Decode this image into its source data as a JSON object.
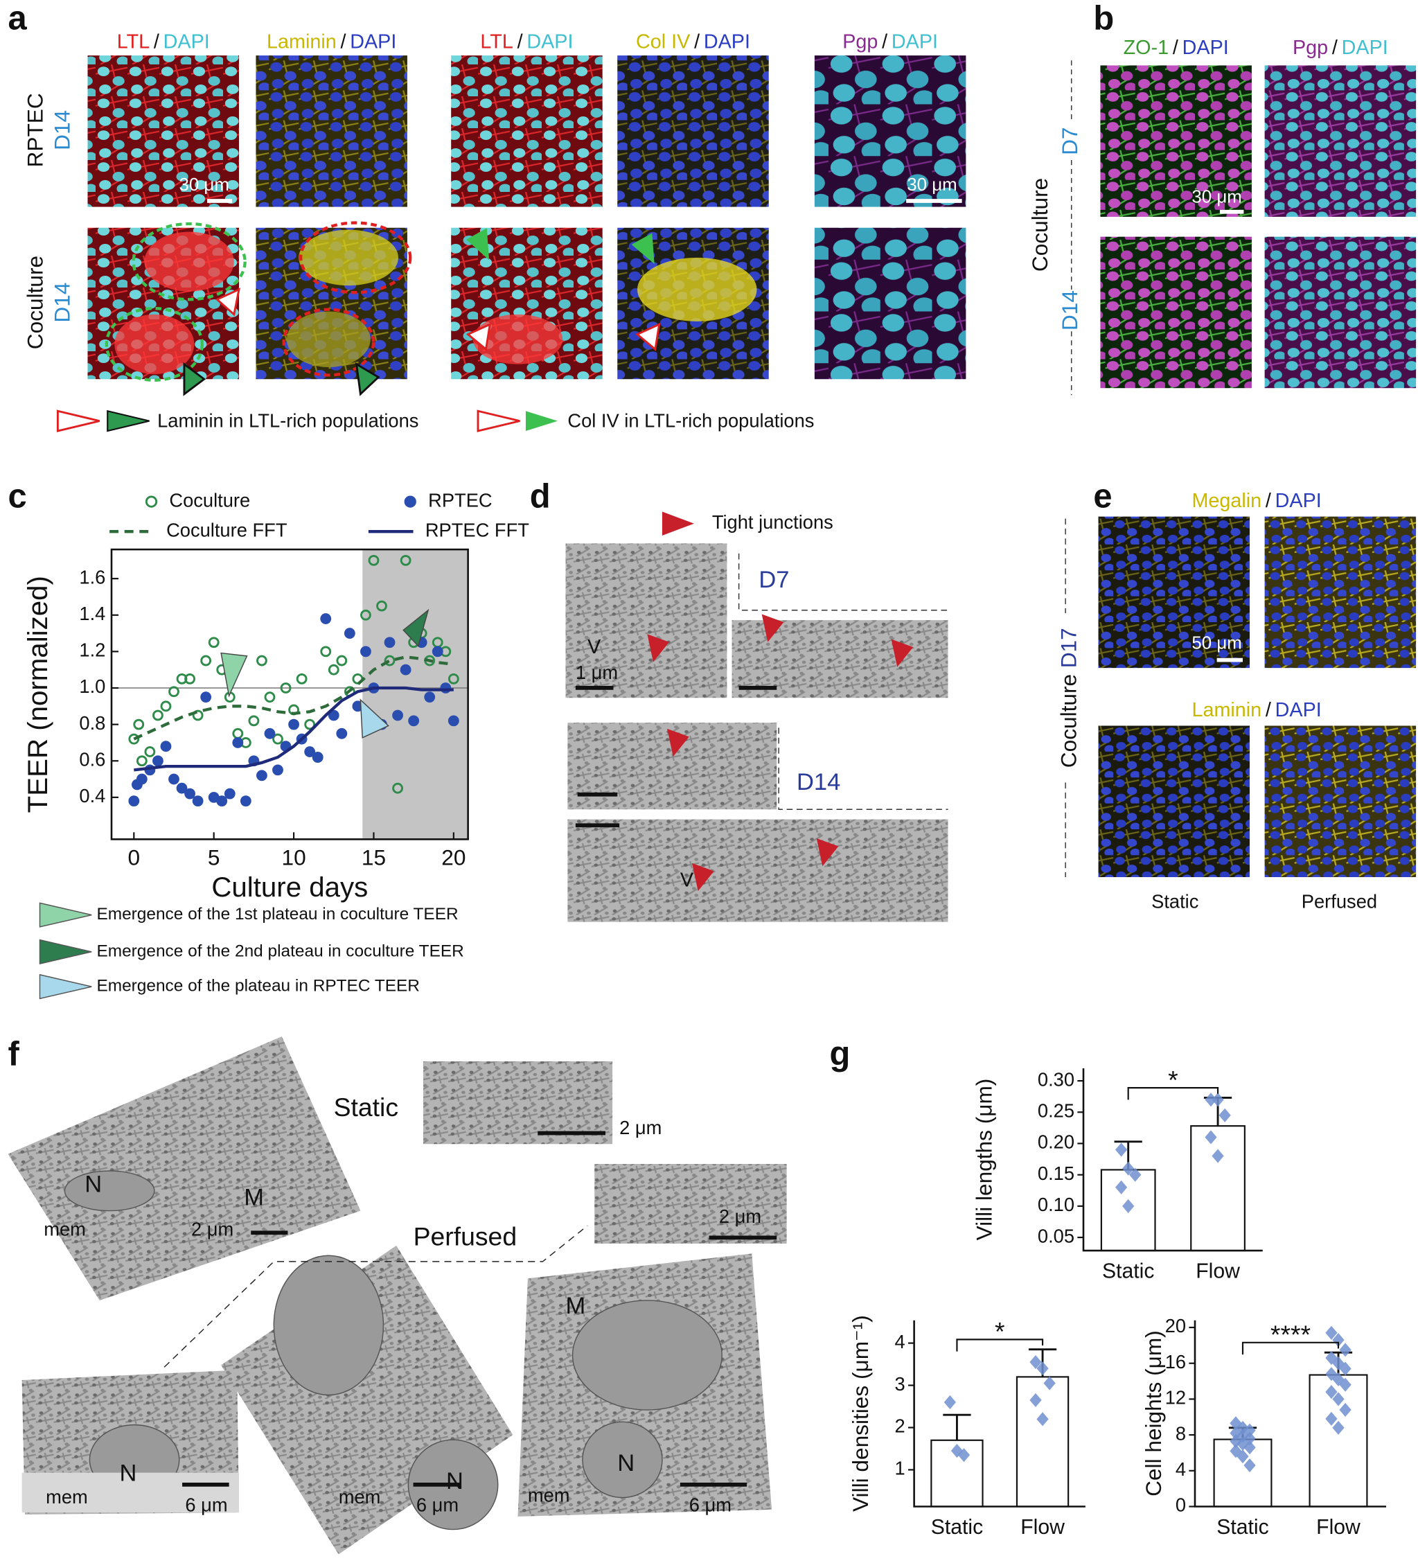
{
  "panel_a": {
    "label": "a",
    "headers": [
      [
        "LTL",
        "/",
        "DAPI"
      ],
      [
        "Laminin",
        "/",
        "DAPI"
      ],
      [
        "LTL",
        "/",
        "DAPI"
      ],
      [
        "Col IV",
        "/",
        "DAPI"
      ],
      [
        "Pgp",
        "/",
        "DAPI"
      ]
    ],
    "row_labels": [
      [
        "RPTEC",
        "D14"
      ],
      [
        "Coculture",
        "D14"
      ]
    ],
    "scale_bar": "30 μm",
    "legend": [
      "Laminin in LTL-rich populations",
      "Col IV in LTL-rich populations"
    ]
  },
  "panel_b": {
    "label": "b",
    "headers": [
      [
        "ZO-1",
        "/",
        "DAPI"
      ],
      [
        "Pgp",
        "/",
        "DAPI"
      ]
    ],
    "group": "Coculture",
    "rows": [
      "D7",
      "D14"
    ],
    "scale_bar": "30 μm"
  },
  "panel_c": {
    "label": "c",
    "notes": [
      "Emergence of the 1st plateau in coculture TEER",
      "Emergence of the 2nd plateau in coculture TEER",
      "Emergence of the plateau in RPTEC TEER"
    ]
  },
  "panel_d": {
    "label": "d",
    "legend": "Tight junctions",
    "days": [
      "D7",
      "D14"
    ],
    "scale_bar": "1 μm",
    "vesicle": "V"
  },
  "panel_e": {
    "label": "e",
    "headers": [
      [
        "Megalin",
        "/",
        "DAPI"
      ],
      [
        "Laminin",
        "/",
        "DAPI"
      ]
    ],
    "group": "Coculture",
    "day": "D17",
    "scale_bar": "50 μm",
    "columns": [
      "Static",
      "Perfused"
    ]
  },
  "panel_f": {
    "label": "f",
    "titles": [
      "Static",
      "Perfused"
    ],
    "nucleus": "N",
    "mito": "M",
    "membrane": "mem",
    "scale_bars": [
      "2 μm",
      "6 μm"
    ]
  },
  "panel_g": {
    "label": "g"
  },
  "chart_data": [
    {
      "type": "scatter",
      "x_label": "Culture days",
      "y_label": "TEER (normalized)",
      "xlim": [
        -1.4,
        20.9
      ],
      "ylim": [
        0.17,
        1.76
      ],
      "xticks": [
        0,
        5,
        10,
        15,
        20
      ],
      "yticks": [
        0.4,
        0.6,
        0.8,
        {
          "value": 1,
          "label": "1.0"
        },
        1.2,
        1.4,
        1.6
      ],
      "grid": false,
      "reference_y": 1,
      "shaded_x": [
        14.3,
        20.9
      ],
      "series": [
        {
          "name": "Coculture",
          "type": "scatter",
          "marker": "open",
          "color": "#2e8b4a",
          "x": [
            0,
            0.3,
            0.5,
            1,
            1.5,
            2,
            2.5,
            3,
            3.5,
            4,
            4.5,
            5,
            5.5,
            6,
            6.5,
            7,
            7.5,
            8,
            8.5,
            9,
            9.5,
            10,
            10.5,
            11,
            11.5,
            12,
            12.5,
            13,
            13.5,
            14,
            14.5,
            15,
            15.5,
            16,
            16.5,
            17,
            17.5,
            18,
            18.5,
            19,
            19.5,
            20
          ],
          "values": [
            0.72,
            0.8,
            0.6,
            0.65,
            0.85,
            0.9,
            0.98,
            1.05,
            1.05,
            0.85,
            1.15,
            1.25,
            1.1,
            0.95,
            0.75,
            0.7,
            0.82,
            1.15,
            0.95,
            0.72,
            1.0,
            0.88,
            1.05,
            0.8,
            0.62,
            1.2,
            1.1,
            1.15,
            0.98,
            1.05,
            1.4,
            1.7,
            1.45,
            1.15,
            0.45,
            1.7,
            1.25,
            1.3,
            1.15,
            1.25,
            1.2,
            1.05
          ]
        },
        {
          "name": "RPTEC",
          "type": "scatter",
          "marker": "filled",
          "color": "#2a4db0",
          "x": [
            0,
            0.2,
            0.5,
            1,
            1.5,
            2,
            2.5,
            3,
            3.5,
            4,
            4.5,
            5,
            5.5,
            6,
            6.5,
            7,
            7.5,
            8,
            8.5,
            9,
            9.5,
            10,
            10.5,
            11,
            11.5,
            12,
            12.5,
            13,
            13.5,
            14,
            14.5,
            15,
            15.5,
            16,
            16.5,
            17,
            17.5,
            18,
            18.5,
            19,
            19.5,
            20
          ],
          "values": [
            0.38,
            0.47,
            0.5,
            0.55,
            0.6,
            0.68,
            0.5,
            0.45,
            0.42,
            0.38,
            0.95,
            0.4,
            0.38,
            0.42,
            0.7,
            0.38,
            0.6,
            0.52,
            0.75,
            0.55,
            0.68,
            0.8,
            0.72,
            0.65,
            0.62,
            1.38,
            0.85,
            0.75,
            1.3,
            0.9,
            1.2,
            1.0,
            0.8,
            1.25,
            0.85,
            1.1,
            0.82,
            1.25,
            0.95,
            1.2,
            1.0,
            0.82
          ]
        },
        {
          "name": "Coculture FFT",
          "type": "line",
          "dash": true,
          "color": "#2e6b3a",
          "x": [
            0,
            1,
            2,
            3,
            4,
            5,
            6,
            7,
            8,
            9,
            10,
            11,
            12,
            13,
            14,
            15,
            16,
            17,
            18,
            19,
            20
          ],
          "values": [
            0.72,
            0.76,
            0.8,
            0.84,
            0.87,
            0.89,
            0.9,
            0.9,
            0.89,
            0.87,
            0.86,
            0.87,
            0.9,
            0.95,
            1.02,
            1.1,
            1.15,
            1.17,
            1.16,
            1.14,
            1.13
          ]
        },
        {
          "name": "RPTEC FFT",
          "type": "line",
          "dash": false,
          "color": "#1f2a7a",
          "x": [
            0,
            1,
            2,
            3,
            4,
            5,
            6,
            7,
            8,
            9,
            10,
            11,
            12,
            13,
            14,
            15,
            16,
            17,
            18,
            19,
            20
          ],
          "values": [
            0.55,
            0.56,
            0.57,
            0.57,
            0.57,
            0.57,
            0.57,
            0.57,
            0.59,
            0.62,
            0.68,
            0.76,
            0.85,
            0.93,
            0.98,
            1.0,
            1.0,
            1.0,
            0.99,
            0.99,
            0.99
          ]
        }
      ]
    },
    {
      "type": "bar",
      "y_label": "Villi lengths (μm)",
      "categories": [
        "Static",
        "Flow"
      ],
      "values": [
        0.158,
        0.228
      ],
      "errors": [
        0.045,
        0.045
      ],
      "points": [
        [
          0.19,
          0.16,
          0.15,
          0.13,
          0.1
        ],
        [
          0.27,
          0.27,
          0.245,
          0.21,
          0.18
        ]
      ],
      "significance": "*",
      "ylim": [
        0.029,
        0.32
      ],
      "yticks": [
        0.05,
        {
          "value": 0.1,
          "label": "0.10"
        },
        0.15,
        {
          "value": 0.2,
          "label": "0.20"
        },
        0.25,
        {
          "value": 0.3,
          "label": "0.30"
        }
      ],
      "color": "#ffffff",
      "point_color": "#6f8fd0"
    },
    {
      "type": "bar",
      "y_label": "Villi densities (μm⁻¹)",
      "categories": [
        "Static",
        "Flow"
      ],
      "values": [
        1.7,
        3.2
      ],
      "errors": [
        0.6,
        0.65
      ],
      "points": [
        [
          2.6,
          1.45,
          1.35
        ],
        [
          3.55,
          3.4,
          3.05,
          2.65,
          2.2
        ]
      ],
      "significance": "*",
      "ylim": [
        0.13,
        4.54
      ],
      "yticks": [
        1,
        2,
        3,
        4
      ],
      "color": "#ffffff",
      "point_color": "#6f8fd0"
    },
    {
      "type": "bar",
      "y_label": "Cell heights (μm)",
      "categories": [
        "Static",
        "Flow"
      ],
      "values": [
        7.5,
        14.7
      ],
      "errors": [
        1.3,
        2.5
      ],
      "points": [
        [
          9.3,
          8.8,
          8.5,
          8.2,
          7.9,
          7.6,
          7.3,
          7.0,
          6.6,
          6.2,
          5.6,
          4.6
        ],
        [
          19.4,
          18.6,
          17.5,
          16.6,
          16,
          15.4,
          14.8,
          14.2,
          13.6,
          12.8,
          12,
          10.8,
          9.8,
          8.8
        ]
      ],
      "significance": "****",
      "ylim": [
        0,
        20.8
      ],
      "yticks": [
        0,
        4,
        8,
        12,
        16,
        20
      ],
      "color": "#ffffff",
      "point_color": "#6f8fd0"
    }
  ]
}
